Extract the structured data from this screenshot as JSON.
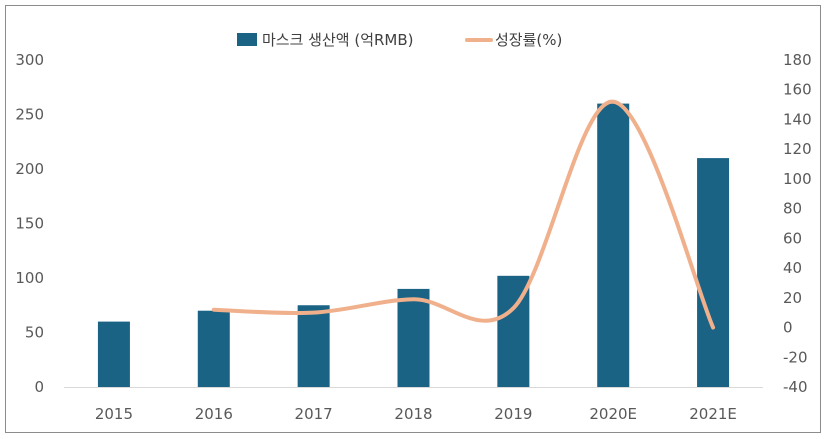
{
  "chart_data": {
    "type": "bar+line",
    "categories": [
      "2015",
      "2016",
      "2017",
      "2018",
      "2019",
      "2020E",
      "2021E"
    ],
    "series": [
      {
        "name": "마스크 생산액 (억RMB)",
        "type": "bar",
        "axis": "left",
        "values": [
          60,
          70,
          75,
          90,
          102,
          260,
          210
        ],
        "color": "#1a6385"
      },
      {
        "name": "성장률(%)",
        "type": "line",
        "axis": "right",
        "values": [
          null,
          12,
          10,
          19,
          13,
          152,
          0
        ],
        "color": "#f0b08c"
      }
    ],
    "y_left": {
      "min": 0,
      "max": 300,
      "ticks": [
        "0",
        "50",
        "100",
        "150",
        "200",
        "250",
        "300"
      ]
    },
    "y_right": {
      "min": -40,
      "max": 180,
      "ticks": [
        "-40",
        "-20",
        "0",
        "20",
        "40",
        "60",
        "80",
        "100",
        "120",
        "140",
        "160",
        "180"
      ]
    },
    "legend_position": "top-center",
    "grid": false
  }
}
